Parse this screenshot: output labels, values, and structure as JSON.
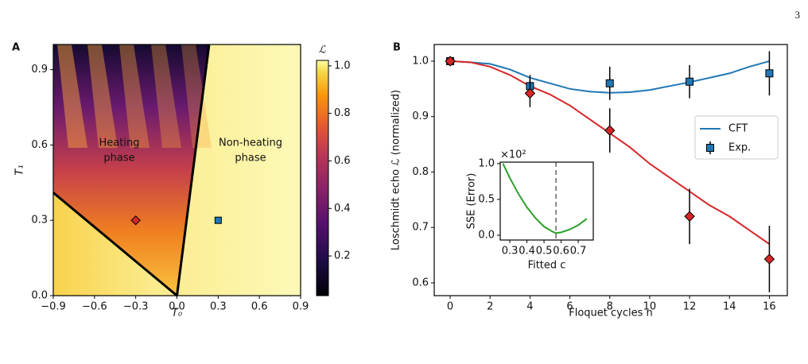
{
  "page_number": "3",
  "chart_data": [
    {
      "type": "heatmap",
      "panel": "A",
      "xlabel": "T₀",
      "ylabel": "T₁",
      "xlim": [
        -0.9,
        0.9
      ],
      "ylim": [
        0,
        1.0
      ],
      "xticks": [
        {
          "value": -0.9,
          "label": "−0.9"
        },
        {
          "value": -0.6,
          "label": "−0.6"
        },
        {
          "value": -0.3,
          "label": "−0.3"
        },
        {
          "value": 0,
          "label": "0.0"
        },
        0.3,
        0.6,
        0.9
      ],
      "yticks": [
        {
          "value": 0,
          "label": "0.0"
        },
        0.3,
        0.6,
        0.9
      ],
      "colorbar": {
        "label": "ℒ",
        "lim": [
          0.033,
          1.023
        ],
        "ticks": [
          0.2,
          0.4,
          0.6,
          0.8,
          {
            "value": 1,
            "label": "1.0"
          }
        ]
      },
      "annotations": [
        [
          "Heating",
          "phase"
        ],
        [
          "Non-heating",
          "phase"
        ]
      ],
      "boundary": [
        {
          "x": [
            -0.9,
            0
          ],
          "y": [
            0.41,
            0
          ],
          "color": "#000000"
        },
        {
          "x": [
            0,
            0.234
          ],
          "y": [
            0,
            1.0
          ],
          "color": "#000000"
        }
      ],
      "markers": [
        {
          "x": [
            -0.3
          ],
          "y": [
            0.3
          ],
          "color": "#d62728",
          "shape": "diamond"
        },
        {
          "x": [
            0.3
          ],
          "y": [
            0.3
          ],
          "color": "#1f77b4",
          "shape": "square"
        }
      ]
    },
    {
      "type": "line",
      "panel": "B",
      "xlabel": "Floquet cycles n",
      "ylabel": "Loschmidt echo ℒ (normalized)",
      "xlim": [
        -0.8,
        16.9
      ],
      "ylim": [
        0.577,
        1.03
      ],
      "xticks": [
        0,
        2,
        4,
        6,
        8,
        10,
        12,
        14,
        16
      ],
      "yticks": [
        0.6,
        0.7,
        0.8,
        0.9,
        {
          "value": 1,
          "label": "1.0"
        }
      ],
      "legend": "right",
      "series": [
        {
          "name": "CFT",
          "color": "#1f77b4",
          "x": [
            0,
            1,
            2,
            3,
            4,
            5,
            6,
            7,
            8,
            9,
            10,
            11,
            12,
            13,
            14,
            15,
            16
          ],
          "values": [
            1.0,
            0.998,
            0.995,
            0.985,
            0.97,
            0.96,
            0.95,
            0.945,
            0.943,
            0.944,
            0.948,
            0.955,
            0.962,
            0.97,
            0.978,
            0.99,
            1.0
          ]
        },
        {
          "color": "#d62728",
          "x": [
            0,
            1,
            2,
            3,
            4,
            5,
            6,
            7,
            8,
            9,
            10,
            11,
            12,
            13,
            14,
            15,
            16
          ],
          "values": [
            1.0,
            0.998,
            0.99,
            0.975,
            0.955,
            0.94,
            0.92,
            0.895,
            0.87,
            0.845,
            0.815,
            0.79,
            0.765,
            0.74,
            0.72,
            0.695,
            0.67
          ]
        },
        {
          "name": "Exp.",
          "type": "errorbar",
          "marker": "square",
          "color": "#1f77b4",
          "x": [
            0,
            4,
            8,
            12,
            16
          ],
          "values": [
            1.0,
            0.955,
            0.96,
            0.963,
            0.978
          ],
          "errors": [
            0.005,
            0.02,
            0.03,
            0.03,
            0.04
          ]
        },
        {
          "type": "errorbar",
          "marker": "diamond",
          "color": "#d62728",
          "x": [
            0,
            4,
            8,
            12,
            16
          ],
          "values": [
            1.0,
            0.942,
            0.875,
            0.72,
            0.643
          ],
          "errors": [
            0.005,
            0.025,
            0.04,
            0.05,
            0.06
          ]
        }
      ]
    },
    {
      "type": "line",
      "xlabel": "Fitted c",
      "ylabel": "SSE (Error)",
      "multiplier": "×10²",
      "xlim": [
        0.244,
        0.788
      ],
      "ylim": [
        -0.067,
        1.02
      ],
      "xticks": [
        0.3,
        0.4,
        0.5,
        0.6,
        0.7
      ],
      "yticks": [
        {
          "value": 0,
          "label": "0.0"
        },
        0.5,
        {
          "value": 1,
          "label": "1.0"
        }
      ],
      "vline": 0.57,
      "series": [
        {
          "color": "#2ca02c",
          "x": [
            0.26,
            0.3,
            0.35,
            0.4,
            0.45,
            0.5,
            0.55,
            0.57,
            0.6,
            0.65,
            0.7,
            0.75
          ],
          "values": [
            1.0,
            0.8,
            0.58,
            0.39,
            0.24,
            0.12,
            0.05,
            0.03,
            0.04,
            0.08,
            0.14,
            0.23
          ]
        }
      ]
    }
  ]
}
